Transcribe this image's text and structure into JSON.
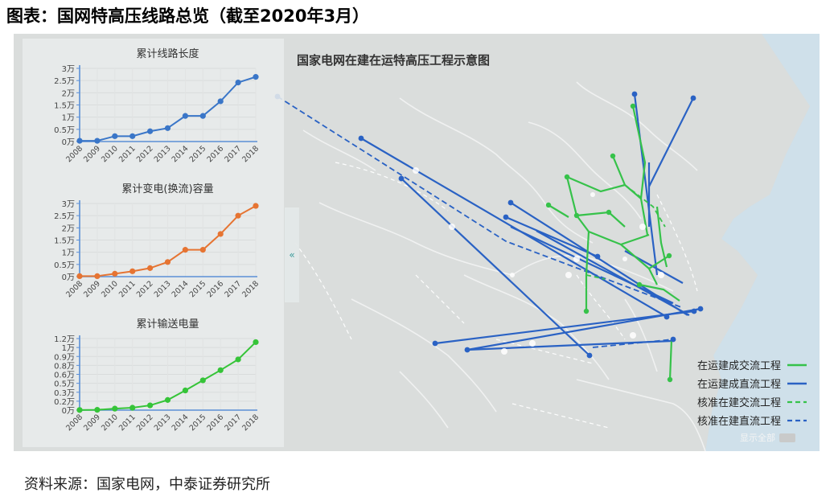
{
  "figure_title": "图表：国网特高压线路总览（截至2020年3月）",
  "source": "资料来源：国家电网，中泰证券研究所",
  "map": {
    "title": "国家电网在建在运特高压工程示意图",
    "collapse_icon": "«",
    "show_all": "显示全部",
    "legend": [
      {
        "label": "在运建成交流工程",
        "style": "solid",
        "color": "#36c24a"
      },
      {
        "label": "在运建成直流工程",
        "style": "solid",
        "color": "#2a62c4"
      },
      {
        "label": "核准在建交流工程",
        "style": "dashed",
        "color": "#36c24a"
      },
      {
        "label": "核准在建直流工程",
        "style": "dashed",
        "color": "#2a62c4"
      }
    ]
  },
  "chart_data": [
    {
      "type": "line",
      "title": "累计线路长度",
      "categories": [
        "2008",
        "2009",
        "2010",
        "2011",
        "2012",
        "2013",
        "2014",
        "2015",
        "2016",
        "2017",
        "2018"
      ],
      "series": [
        {
          "values": [
            0.03,
            0.03,
            0.22,
            0.22,
            0.42,
            0.55,
            1.05,
            1.05,
            1.65,
            2.42,
            2.65
          ]
        }
      ],
      "yticks": [
        "0万",
        "0.5万",
        "1万",
        "1.5万",
        "2万",
        "2.5万",
        "3万"
      ],
      "ylim": [
        0,
        3
      ],
      "color": "#3a76c8"
    },
    {
      "type": "line",
      "title": "累计变电(换流)容量",
      "categories": [
        "2008",
        "2009",
        "2010",
        "2011",
        "2012",
        "2013",
        "2014",
        "2015",
        "2016",
        "2017",
        "2018"
      ],
      "series": [
        {
          "values": [
            0.02,
            0.02,
            0.12,
            0.22,
            0.35,
            0.6,
            1.1,
            1.1,
            1.75,
            2.5,
            2.9
          ]
        }
      ],
      "yticks": [
        "0万",
        "0.5万",
        "1万",
        "1.5万",
        "2万",
        "2.5万",
        "3万"
      ],
      "ylim": [
        0,
        3
      ],
      "color": "#e67432"
    },
    {
      "type": "line",
      "title": "累计输送电量",
      "categories": [
        "2008",
        "2009",
        "2010",
        "2011",
        "2012",
        "2013",
        "2014",
        "2015",
        "2016",
        "2017",
        "2018"
      ],
      "series": [
        {
          "values": [
            0.002,
            0.005,
            0.025,
            0.04,
            0.08,
            0.17,
            0.33,
            0.5,
            0.67,
            0.85,
            1.14
          ]
        }
      ],
      "yticks": [
        "0万",
        "0.15万",
        "0.3万",
        "0.45万",
        "0.6万",
        "0.75万",
        "0.9万",
        "1.05万",
        "1.2万"
      ],
      "ytick_labels": [
        "0万",
        "0.2万",
        "0.3万",
        "0.5万",
        "0.6万",
        "0.8万",
        "0.9万",
        "1万",
        "1.2万"
      ],
      "ylim": [
        0,
        1.2
      ],
      "color": "#35c438"
    }
  ]
}
